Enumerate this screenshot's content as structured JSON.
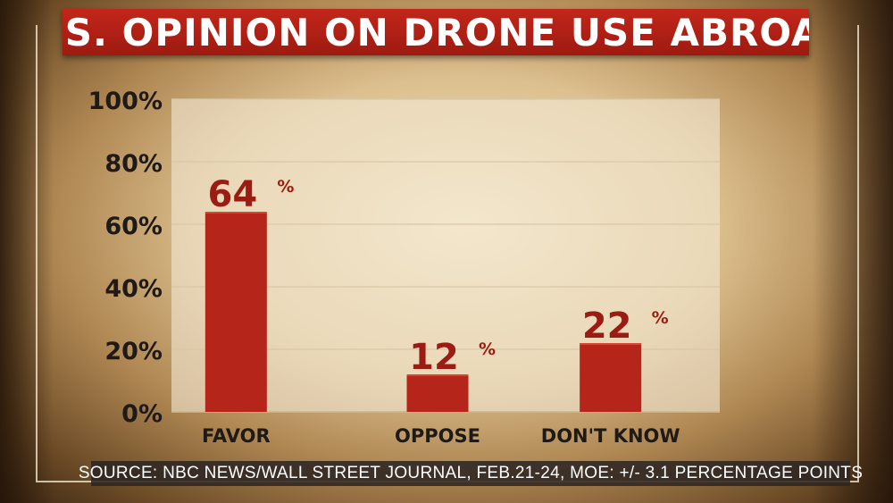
{
  "title": "U.S. OPINION ON DRONE USE ABROAD",
  "source": "SOURCE: NBC NEWS/WALL STREET JOURNAL, FEB.21-24, MOE: +/- 3.1 PERCENTAGE POINTS",
  "colors": {
    "bar": "#b5251a",
    "label": "#9b1c12",
    "banner": "#b02218",
    "plot_bg": "#f3ead6",
    "axis_text": "#1f1a16"
  },
  "chart_data": {
    "type": "bar",
    "categories": [
      "FAVOR",
      "OPPOSE",
      "DON'T KNOW"
    ],
    "values": [
      64,
      12,
      22
    ],
    "value_labels": [
      "64",
      "12",
      "22"
    ],
    "value_suffix": "%",
    "yticks": [
      "0%",
      "20%",
      "40%",
      "60%",
      "80%",
      "100%"
    ],
    "ylim": [
      0,
      100
    ],
    "grid": true
  }
}
